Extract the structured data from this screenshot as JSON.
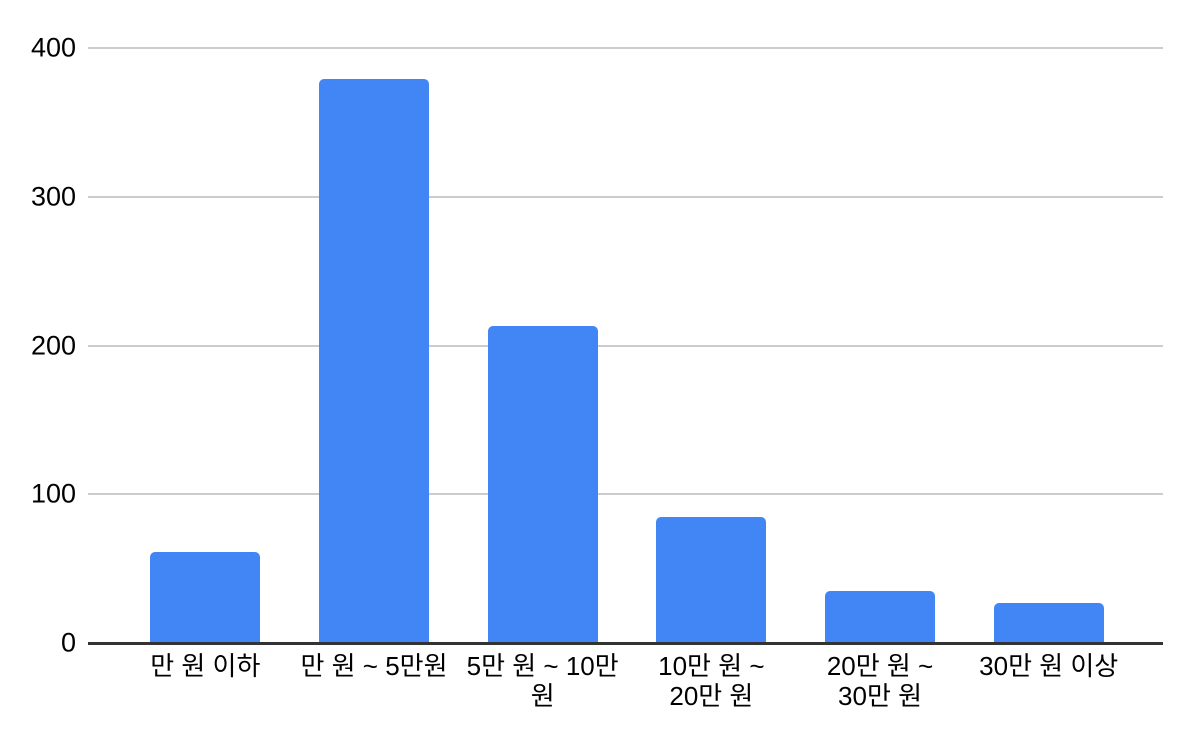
{
  "chart_data": {
    "type": "bar",
    "title": "",
    "xlabel": "",
    "ylabel": "",
    "categories": [
      "만 원 이하",
      "만 원 ~ 5만원",
      "5만 원 ~ 10만 원",
      "10만 원 ~ 20만 원",
      "20만 원 ~ 30만 원",
      "30만 원 이상"
    ],
    "category_display_lines": [
      [
        "만 원 이하"
      ],
      [
        "만 원 ~ 5만원"
      ],
      [
        "5만 원 ~ 10만",
        "원"
      ],
      [
        "10만 원 ~",
        "20만 원"
      ],
      [
        "20만 원 ~",
        "30만 원"
      ],
      [
        "30만 원 이상"
      ]
    ],
    "values": [
      61,
      379,
      213,
      85,
      35,
      27
    ],
    "ylim": [
      0,
      400
    ],
    "yticks": [
      0,
      100,
      200,
      300,
      400
    ],
    "grid": true,
    "legend": "none",
    "colors": {
      "bar": "#4285f4",
      "gridline": "#cccccc",
      "axis_line": "#333333",
      "tick_label": "#000000",
      "background": "#ffffff"
    }
  }
}
